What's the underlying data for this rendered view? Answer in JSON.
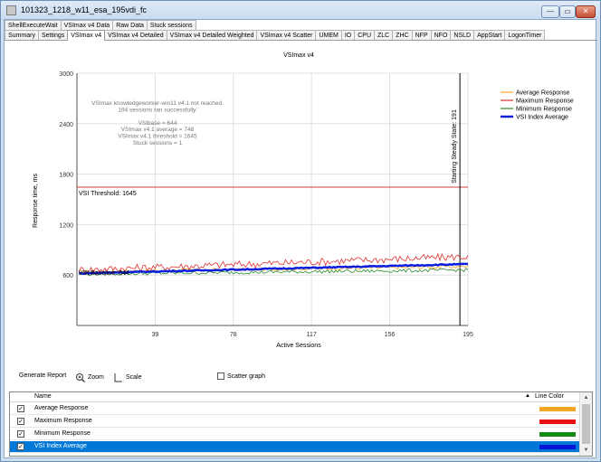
{
  "window": {
    "title": "101323_1218_w11_esa_195vdi_fc",
    "buttons": {
      "minimize": "—",
      "maximize": "▭",
      "close": "✕"
    }
  },
  "tabs_row1": [
    "ShellExecuteWait",
    "VSImax v4 Data",
    "Raw Data",
    "Stuck sessions"
  ],
  "tabs_row2": [
    "Summary",
    "Settings",
    "VSImax v4",
    "VSImax v4 Detailed",
    "VSImax v4 Detailed Weighted",
    "VSImax v4 Scatter",
    "UMEM",
    "IO",
    "CPU",
    "ZLC",
    "ZHC",
    "NFP",
    "NFO",
    "NSLD",
    "AppStart",
    "LogonTimer"
  ],
  "active_tab": "VSImax v4",
  "chart_data": {
    "type": "line",
    "title": "VSImax v4",
    "xlabel": "Active Sessions",
    "ylabel": "Response time, ms",
    "xlim": [
      0,
      195
    ],
    "ylim": [
      0,
      3000
    ],
    "x_ticks": [
      "39",
      "78",
      "117",
      "156",
      "195"
    ],
    "y_ticks": [
      "600",
      "1200",
      "1800",
      "2400",
      "3000"
    ],
    "annotations": {
      "summary_lines": [
        "VSImax knowledgeworker-win11 v4.1 not reached.",
        "194 sessions ran successfully.",
        "",
        "VSIbase = 644",
        "VSImax v4.1 average = 748",
        "VSImax v4.1 threshold = 1645",
        "Stuck sessions = 1"
      ],
      "threshold_label": "VSI Threshold: 1645",
      "threshold_value": 1645,
      "baseline_label": "VSI Baseline: 644",
      "baseline_value": 644,
      "steady_state_label": "Starting Steady State: 191",
      "steady_state_x": 191
    },
    "series": [
      {
        "name": "Average Response",
        "color": "#f5a623",
        "start": 640,
        "end": 700,
        "noise": 20
      },
      {
        "name": "Maximum Response",
        "color": "#e03030",
        "start": 660,
        "end": 820,
        "noise": 45
      },
      {
        "name": "Minimum Response",
        "color": "#2a8a2a",
        "start": 610,
        "end": 660,
        "noise": 20
      },
      {
        "name": "VSI Index Average",
        "color": "#0a1ee0",
        "start": 620,
        "end": 730,
        "noise": 6
      }
    ],
    "legend_position": "top-right"
  },
  "toolbar": {
    "generate_report": "Generate Report",
    "zoom": "Zoom",
    "scale": "Scale",
    "scatter_graph": "Scatter graph"
  },
  "grid": {
    "columns": {
      "name": "Name",
      "line_color": "Line Color"
    },
    "rows": [
      {
        "name": "Average Response",
        "color": "#f5a623",
        "checked": true
      },
      {
        "name": "Maximum Response",
        "color": "#e81010",
        "checked": true
      },
      {
        "name": "Minimum Response",
        "color": "#138a13",
        "checked": true
      },
      {
        "name": "VSI Index Average",
        "color": "#0a14d8",
        "checked": true
      }
    ]
  }
}
